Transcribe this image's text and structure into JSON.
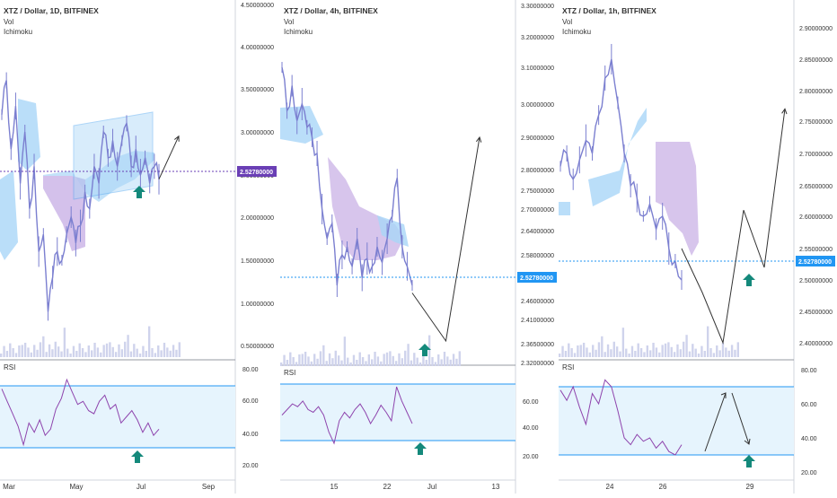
{
  "colors": {
    "price": "#7b7fd0",
    "rsi_line": "#8e44ad",
    "rsi_band_fill": "#e6f4fd",
    "rsi_band_line": "#2196f3",
    "cloud_bull": "#a9d6f7",
    "cloud_bear": "#c9b1e6",
    "channel": "#4aa3f0",
    "price_line_1d": "#6a3fb5",
    "price_line_other": "#2196f3",
    "up_arrow": "#14897b",
    "arrow_path": "#333333",
    "volume": "#cfd3ec",
    "axis_text": "#333333",
    "grid": "#e0e3eb"
  },
  "chart_data": [
    {
      "type": "line",
      "title": "XTZ / Dollar, 1D, BITFINEX",
      "indicators": [
        "Vol",
        "Ichimoku"
      ],
      "y_ticks": [
        "4.50000000",
        "4.00000000",
        "3.50000000",
        "3.00000000",
        "2.50000000",
        "2.00000000",
        "1.50000000",
        "1.00000000",
        "0.50000000"
      ],
      "ylim": [
        0.3,
        4.56
      ],
      "x_ticks": [
        "Mar",
        "May",
        "Jul",
        "Sep"
      ],
      "current_price": "2.52780000",
      "current_value": 2.5278,
      "price_series": [
        3.2,
        3.6,
        2.8,
        3.3,
        2.4,
        3.0,
        2.1,
        2.6,
        1.6,
        1.8,
        0.9,
        1.3,
        1.6,
        1.5,
        1.8,
        2.0,
        1.7,
        1.9,
        2.3,
        2.1,
        2.6,
        2.4,
        3.0,
        2.7,
        2.9,
        2.6,
        2.9,
        3.1,
        2.6,
        2.8,
        2.5,
        2.7,
        2.4,
        2.6,
        2.45
      ],
      "projection": [
        2.45,
        2.95
      ],
      "rsi": {
        "label": "RSI",
        "ticks": [
          "80.00",
          "60.00",
          "40.00",
          "20.00"
        ],
        "band": [
          30,
          70
        ],
        "values": [
          68,
          60,
          52,
          44,
          32,
          46,
          40,
          48,
          38,
          42,
          55,
          62,
          74,
          66,
          58,
          60,
          54,
          52,
          60,
          64,
          55,
          58,
          46,
          50,
          54,
          48,
          40,
          46,
          38,
          42
        ]
      },
      "up_arrow": true
    },
    {
      "type": "line",
      "title": "XTZ / Dollar, 4h, BITFINEX",
      "indicators": [
        "Vol",
        "Ichimoku"
      ],
      "y_ticks": [
        "3.30000000",
        "3.20000000",
        "3.10000000",
        "3.00000000",
        "2.90000000",
        "2.80000000",
        "2.75000000",
        "2.70000000",
        "2.64000000",
        "2.58000000",
        "2.46000000",
        "2.41000000",
        "2.36500000",
        "2.32000000"
      ],
      "x_ticks": [
        "15",
        "22",
        "Jul",
        "13"
      ],
      "current_price": "2.52780000",
      "current_value": 2.5278,
      "price_series": [
        3.1,
        2.98,
        3.05,
        2.95,
        3.0,
        2.93,
        2.9,
        2.85,
        2.7,
        2.62,
        2.66,
        2.5,
        2.58,
        2.6,
        2.55,
        2.62,
        2.52,
        2.57,
        2.55,
        2.6,
        2.56,
        2.62,
        2.68,
        2.78,
        2.6,
        2.55,
        2.5
      ],
      "projection": [
        2.48,
        2.37,
        2.9
      ],
      "rsi": {
        "label": "RSI",
        "ticks": [
          "60.00",
          "40.00",
          "20.00"
        ],
        "band": [
          30,
          70
        ],
        "values": [
          48,
          52,
          56,
          54,
          58,
          52,
          50,
          54,
          48,
          36,
          28,
          44,
          50,
          46,
          52,
          56,
          50,
          42,
          48,
          55,
          50,
          44,
          68,
          58,
          50,
          42
        ]
      },
      "up_arrow": true
    },
    {
      "type": "line",
      "title": "XTZ / Dollar, 1h, BITFINEX",
      "indicators": [
        "Vol",
        "Ichimoku"
      ],
      "y_ticks": [
        "2.90000000",
        "2.85000000",
        "2.80000000",
        "2.75000000",
        "2.70000000",
        "2.65000000",
        "2.60000000",
        "2.55000000",
        "2.50000000",
        "2.45000000",
        "2.40000000"
      ],
      "x_ticks": [
        "24",
        "26",
        "29"
      ],
      "current_price": "2.52780000",
      "current_value": 2.5278,
      "price_series": [
        2.68,
        2.7,
        2.66,
        2.69,
        2.72,
        2.7,
        2.76,
        2.82,
        2.85,
        2.78,
        2.7,
        2.65,
        2.63,
        2.6,
        2.62,
        2.58,
        2.6,
        2.55,
        2.53,
        2.5
      ],
      "projection": [
        2.55,
        2.48,
        2.4,
        2.61,
        2.52,
        2.77
      ],
      "rsi": {
        "label": "RSI",
        "ticks": [
          "80.00",
          "60.00",
          "40.00",
          "20.00"
        ],
        "band": [
          30,
          70
        ],
        "values": [
          68,
          62,
          70,
          58,
          48,
          66,
          60,
          74,
          70,
          56,
          40,
          36,
          42,
          38,
          40,
          34,
          38,
          32,
          30,
          36
        ]
      },
      "up_arrow": true
    }
  ]
}
